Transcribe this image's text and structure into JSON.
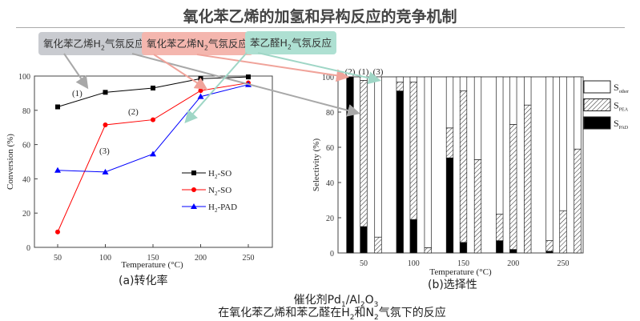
{
  "title": "氧化苯乙烯的加氢和异构反应的竞争机制",
  "callouts": [
    {
      "pre": "氧化苯乙烯H",
      "sub": "2",
      "post": "气氛反应",
      "color": "#c9cbd0",
      "arrow": "#a8a8a8"
    },
    {
      "pre": "氧化苯乙烯N",
      "sub": "2",
      "post": "气氛反应",
      "color": "#f4b6ae",
      "arrow": "#f0a39a"
    },
    {
      "pre": "苯乙醛H",
      "sub": "2",
      "post": "气氛反应",
      "color": "#aee0d2",
      "arrow": "#9fd6c6"
    }
  ],
  "caption": {
    "line1_pre": "催化剂Pd",
    "line1_sub1": "1",
    "line1_mid": "/Al",
    "line1_sub2": "2",
    "line1_mid2": "O",
    "line1_sub3": "3",
    "line2_a": "在氧化苯乙烯和苯乙醛在H",
    "line2_sub1": "2",
    "line2_b": "和N",
    "line2_sub2": "2",
    "line2_c": "气氛下的反应"
  },
  "chart_data": [
    {
      "type": "line",
      "caption": "(a)转化率",
      "xlabel": "Temperature (°C)",
      "ylabel": "Conversion (%)",
      "x": [
        50,
        100,
        150,
        200,
        250
      ],
      "xticks": [
        "50",
        "100",
        "150",
        "200",
        "250"
      ],
      "yticks": [
        "0",
        "20",
        "40",
        "60",
        "80",
        "100"
      ],
      "ylim": [
        0,
        100
      ],
      "xlim": [
        25,
        275
      ],
      "legend_position": "center-right",
      "annotations": [
        "(1)",
        "(2)",
        "(3)"
      ],
      "series": [
        {
          "name_main": "H",
          "name_sub": "2",
          "name_rest": "-SO",
          "color": "#000000",
          "marker": "square",
          "values": [
            82,
            90.5,
            93,
            98.5,
            99.5
          ]
        },
        {
          "name_main": "N",
          "name_sub": "2",
          "name_rest": "-SO",
          "color": "#ff0000",
          "marker": "circle",
          "values": [
            9,
            71.5,
            74.5,
            91.5,
            96
          ]
        },
        {
          "name_main": "H",
          "name_sub": "2",
          "name_rest": "-PAD",
          "color": "#0000ff",
          "marker": "triangle",
          "values": [
            45,
            44,
            54.5,
            88,
            95
          ]
        }
      ]
    },
    {
      "type": "bar",
      "caption": "(b)选择性",
      "xlabel": "Temperature (°C)",
      "ylabel": "Selectivity (%)",
      "categories": [
        "50",
        "100",
        "150",
        "200",
        "250"
      ],
      "yticks": [
        "0",
        "20",
        "40",
        "60",
        "80",
        "100"
      ],
      "ylim": [
        0,
        100
      ],
      "stacked": true,
      "bar_order": [
        "(2)",
        "(1)",
        "(3)"
      ],
      "legend_position": "right",
      "legend": [
        {
          "main": "S",
          "sub": "other",
          "fill": "white"
        },
        {
          "main": "S",
          "sub": "PEA",
          "fill": "hatch"
        },
        {
          "main": "S",
          "sub": "PAD",
          "fill": "black"
        }
      ],
      "series": [
        {
          "name": "S_PAD",
          "values": [
            [
              100,
              15,
              0
            ],
            [
              92,
              19,
              0
            ],
            [
              54,
              6,
              0
            ],
            [
              7,
              2,
              0
            ],
            [
              1,
              0,
              0
            ]
          ]
        },
        {
          "name": "S_PEA",
          "values": [
            [
              0,
              83,
              9
            ],
            [
              5,
              78,
              3
            ],
            [
              17,
              86,
              53
            ],
            [
              15,
              71,
              84
            ],
            [
              6,
              24,
              59
            ]
          ]
        },
        {
          "name": "S_other",
          "values": [
            [
              0,
              2,
              91
            ],
            [
              3,
              3,
              97
            ],
            [
              29,
              8,
              47
            ],
            [
              78,
              27,
              16
            ],
            [
              93,
              76,
              41
            ]
          ]
        }
      ]
    }
  ]
}
